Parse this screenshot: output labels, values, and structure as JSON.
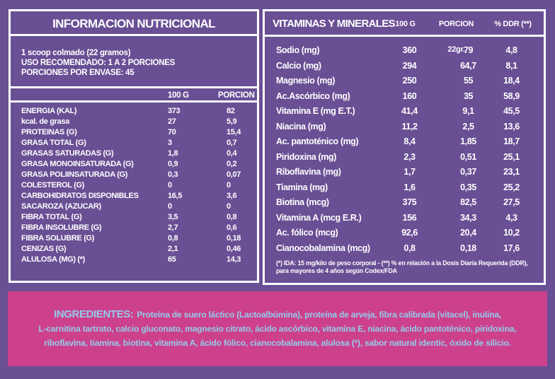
{
  "colors": {
    "background": "#694f94",
    "panel_border": "#ffffff",
    "text": "#ffffff",
    "ingredients_background": "#cd418c",
    "ingredients_text": "#93cce9"
  },
  "left_panel": {
    "title": "INFORMACION NUTRICIONAL",
    "serving_line1": "1 scoop colmado (22 gramos)",
    "serving_line2": "USO RECOMENDADO: 1 A 2 PORCIONES",
    "serving_line3": "PORCIONES POR ENVASE: 45",
    "col_100g": "100 G",
    "col_porcion": "PORCION",
    "rows": [
      {
        "label": "ENERGIA (KAL)",
        "v100": "373",
        "vpor": "82"
      },
      {
        "label": "kcal. de grasa",
        "v100": "27",
        "vpor": "5,9"
      },
      {
        "label": "PROTEINAS (G)",
        "v100": "70",
        "vpor": "15,4"
      },
      {
        "label": "GRASA TOTAL (G)",
        "v100": "3",
        "vpor": "0,7"
      },
      {
        "label": "GRASAS SATURADAS (G)",
        "v100": "1,8",
        "vpor": "0,4"
      },
      {
        "label": "GRASA MONOINSATURADA (G)",
        "v100": "0,9",
        "vpor": "0,2"
      },
      {
        "label": "GRASA POLIINSATURADA (G)",
        "v100": "0,3",
        "vpor": "0,07"
      },
      {
        "label": "COLESTEROL (G)",
        "v100": "0",
        "vpor": "0"
      },
      {
        "label": "CARBOHIDRATOS DISPONIBLES",
        "v100": "16,5",
        "vpor": "3,6"
      },
      {
        "label": "SACAROZA (AZUCAR)",
        "v100": "0",
        "vpor": "0"
      },
      {
        "label": "FIBRA TOTAL (G)",
        "v100": "3,5",
        "vpor": "0,8"
      },
      {
        "label": "FIBRA INSOLUBRE (G)",
        "v100": "2,7",
        "vpor": "0,6"
      },
      {
        "label": "FIBRA SOLUBRE (G)",
        "v100": "0,8",
        "vpor": "0,18"
      },
      {
        "label": "CENIZAS (G)",
        "v100": "2,1",
        "vpor": "0,46"
      },
      {
        "label": "ALULOSA (MG) (*)",
        "v100": "65",
        "vpor": "14,3"
      }
    ]
  },
  "right_panel": {
    "title": "VITAMINAS Y MINERALES",
    "col_100g": "100 G",
    "col_porcion": "PORCION 22gr.",
    "col_ddr": "% DDR (**)",
    "rows": [
      {
        "label": "Sodio (mg)",
        "v100": "360",
        "vpor": "79",
        "ddr": "4,8"
      },
      {
        "label": "Calcio (mg)",
        "v100": "294",
        "vpor": "64,7",
        "ddr": "8,1"
      },
      {
        "label": "Magnesio (mg)",
        "v100": "250",
        "vpor": "55",
        "ddr": "18,4"
      },
      {
        "label": "Ac.Ascórbico (mg)",
        "v100": "160",
        "vpor": "35",
        "ddr": "58,9"
      },
      {
        "label": "Vitamina E (mg E.T.)",
        "v100": "41,4",
        "vpor": "9,1",
        "ddr": "45,5"
      },
      {
        "label": "Niacina (mg)",
        "v100": "11,2",
        "vpor": "2,5",
        "ddr": "13,6"
      },
      {
        "label": "Ac. pantoténico (mg)",
        "v100": "8,4",
        "vpor": "1,85",
        "ddr": "18,7"
      },
      {
        "label": "Piridoxina (mg)",
        "v100": "2,3",
        "vpor": "0,51",
        "ddr": "25,1"
      },
      {
        "label": "Riboflavina (mg)",
        "v100": "1,7",
        "vpor": "0,37",
        "ddr": "23,1"
      },
      {
        "label": "Tiamina (mg)",
        "v100": "1,6",
        "vpor": "0,35",
        "ddr": "25,2"
      },
      {
        "label": "Biotina (mcg)",
        "v100": "375",
        "vpor": "82,5",
        "ddr": "27,5"
      },
      {
        "label": "Vitamina A (mcg E.R.)",
        "v100": "156",
        "vpor": "34,3",
        "ddr": "4,3"
      },
      {
        "label": "Ac. fólico (mcg)",
        "v100": "92,6",
        "vpor": "20,4",
        "ddr": "10,2"
      },
      {
        "label": "Cianocobalamina (mcg)",
        "v100": "0,8",
        "vpor": "0,18",
        "ddr": "17,6"
      }
    ],
    "footnote_line1": "(*) IDA: 15 mg/kilo de peso corporal  - (**) % en relación a la Dosis Diaria Requerida (DDR),",
    "footnote_line2": "para mayores de 4 años según Codex/FDA"
  },
  "ingredients": {
    "label": "INGREDIENTES:",
    "line1": "Proteína de suero láctico (Lactoalbúmina), proteína de arveja, fibra calibrada (vitacel), inulina,",
    "line2": "L-carnitina tartrato, calcio gluconato, magnesio citrato, ácido ascórbico, vitamina E, niacina, ácido pantoténico, piridoxina,",
    "line3": "riboflavina, tiamina, biotina, vitamina A, ácido fólico, cianocobalamina, alulosa (*), sabor natural identic, óxido de silicio."
  }
}
